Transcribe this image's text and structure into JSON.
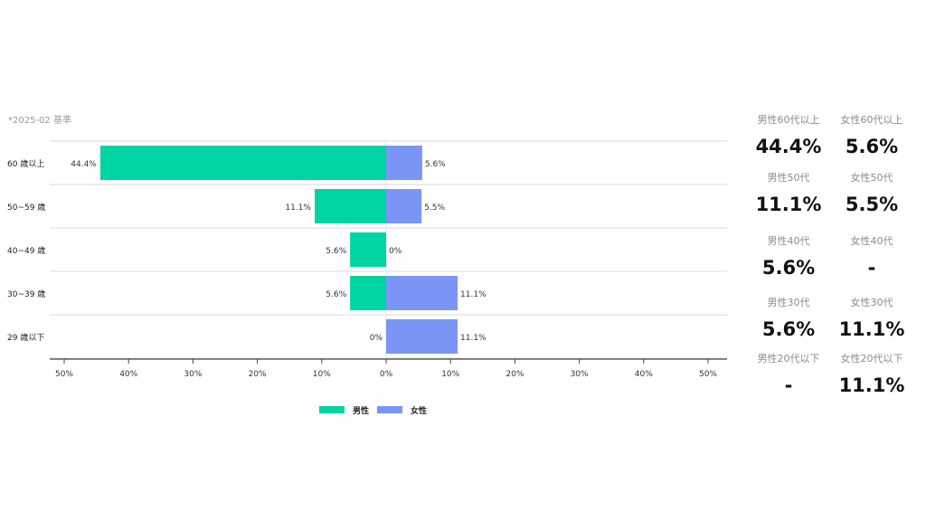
{
  "note": "*2025-02 基準",
  "colors": {
    "male": "#00d4a2",
    "female": "#7b95f6",
    "grid": "#d9d9d9",
    "axis": "#444444"
  },
  "chart_data": {
    "type": "bar",
    "orientation": "horizontal-diverging",
    "categories": [
      "60 歳以上",
      "50~59 歳",
      "40~49 歳",
      "30~39 歳",
      "29 歳以下"
    ],
    "series": [
      {
        "name": "男性",
        "values": [
          44.4,
          11.1,
          5.6,
          5.6,
          0
        ],
        "labels": [
          "44.4%",
          "11.1%",
          "5.6%",
          "5.6%",
          "0%"
        ],
        "direction": "left"
      },
      {
        "name": "女性",
        "values": [
          5.6,
          5.5,
          0,
          11.1,
          11.1
        ],
        "labels": [
          "5.6%",
          "5.5%",
          "0%",
          "11.1%",
          "11.1%"
        ],
        "direction": "right"
      }
    ],
    "xlim": [
      -50,
      50
    ],
    "xticks": [
      -50,
      -40,
      -30,
      -20,
      -10,
      0,
      10,
      20,
      30,
      40,
      50
    ],
    "xtick_labels": [
      "50%",
      "40%",
      "30%",
      "20%",
      "10%",
      "0%",
      "10%",
      "20%",
      "30%",
      "40%",
      "50%"
    ],
    "legend_position": "bottom-center"
  },
  "stats": [
    {
      "label": "男性60代以上",
      "value": "44.4%"
    },
    {
      "label": "女性60代以上",
      "value": "5.6%"
    },
    {
      "label": "男性50代",
      "value": "11.1%"
    },
    {
      "label": "女性50代",
      "value": "5.5%"
    },
    {
      "label": "男性40代",
      "value": "5.6%"
    },
    {
      "label": "女性40代",
      "value": "-"
    },
    {
      "label": "男性30代",
      "value": "5.6%"
    },
    {
      "label": "女性30代",
      "value": "11.1%"
    },
    {
      "label": "男性20代以下",
      "value": "-"
    },
    {
      "label": "女性20代以下",
      "value": "11.1%"
    }
  ]
}
